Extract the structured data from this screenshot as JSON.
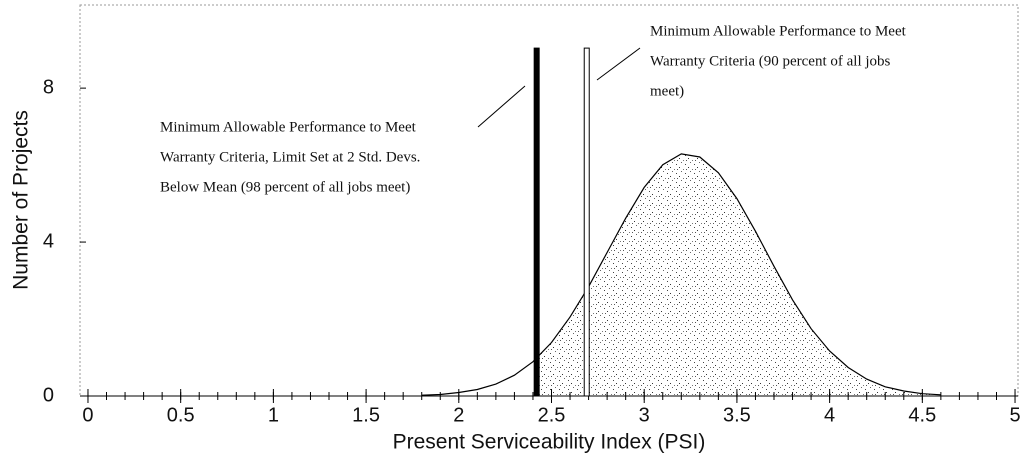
{
  "chart_data": {
    "type": "line",
    "xlabel": "Present Serviceability Index (PSI)",
    "ylabel": "Number of Projects",
    "xlim": [
      -0.043,
      5.016
    ],
    "ylim": [
      0,
      10.16
    ],
    "xticks": [
      0,
      0.5,
      1,
      1.5,
      2,
      2.5,
      3,
      3.5,
      4,
      4.5,
      5
    ],
    "xminorticks": [
      0,
      0.1,
      0.2,
      0.3,
      0.4,
      0.5,
      0.6,
      0.7,
      0.8,
      0.9,
      1,
      1.1,
      1.2,
      1.3,
      1.4,
      1.5,
      1.6,
      1.7,
      1.8,
      1.9,
      2,
      2.1,
      2.2,
      2.3,
      2.4,
      2.5,
      2.6,
      2.7,
      2.8,
      2.9,
      3,
      3.1,
      3.2,
      3.3,
      3.4,
      3.5,
      3.6,
      3.7,
      3.8,
      3.9,
      4,
      4.1,
      4.2,
      4.3,
      4.4,
      4.5,
      4.6,
      4.7,
      4.8,
      4.9,
      5
    ],
    "yticks": [
      0,
      4,
      8
    ],
    "x": [
      1.8,
      1.9,
      2.0,
      2.1,
      2.2,
      2.3,
      2.4,
      2.5,
      2.6,
      2.7,
      2.8,
      2.9,
      3.0,
      3.1,
      3.2,
      3.3,
      3.4,
      3.5,
      3.6,
      3.7,
      3.8,
      3.9,
      4.0,
      4.1,
      4.2,
      4.3,
      4.4,
      4.5,
      4.6
    ],
    "series": [
      {
        "color": "#000000",
        "values": [
          0.02,
          0.04,
          0.09,
          0.17,
          0.31,
          0.54,
          0.89,
          1.39,
          2.05,
          2.84,
          3.73,
          4.62,
          5.42,
          6.01,
          6.29,
          6.21,
          5.8,
          5.13,
          4.28,
          3.37,
          2.5,
          1.75,
          1.17,
          0.74,
          0.44,
          0.24,
          0.13,
          0.06,
          0.03
        ]
      }
    ],
    "markers": [
      {
        "x": 2.42,
        "top": 9.04,
        "color": "#000000"
      },
      {
        "x": 2.69,
        "top": 9.04,
        "color": "#ffffff"
      }
    ],
    "annotations": [
      {
        "lines": [
          "Minimum Allowable Performance to Meet",
          "Warranty Criteria, Limit Set at 2 Std. Devs.",
          "Below Mean (98 percent of all jobs meet)"
        ]
      },
      {
        "lines": [
          "Minimum Allowable Performance to Meet",
          "Warranty Criteria (90 percent of all jobs",
          "meet)"
        ]
      }
    ]
  }
}
